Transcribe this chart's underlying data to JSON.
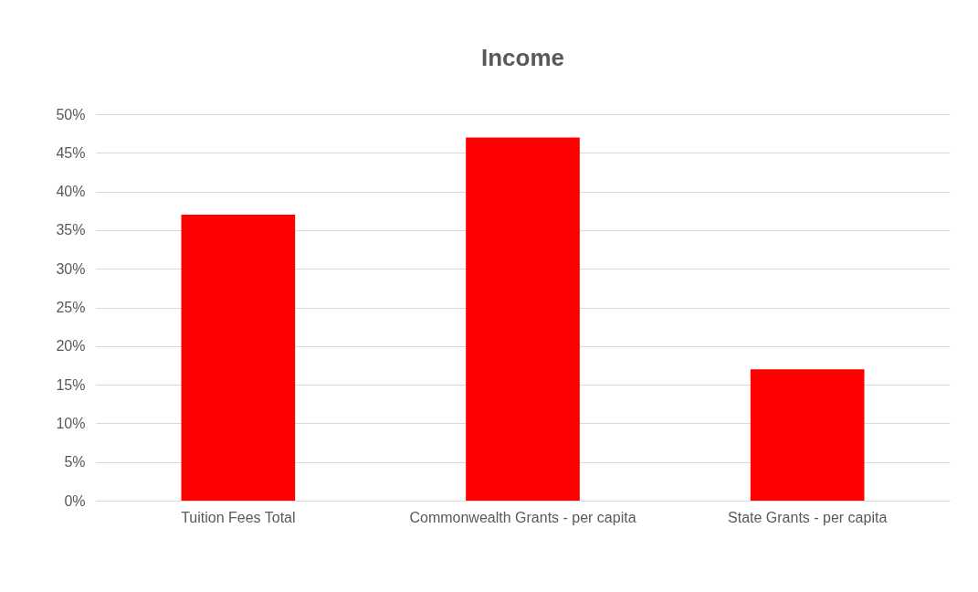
{
  "chart_data": {
    "type": "bar",
    "title": "Income",
    "categories": [
      "Tuition Fees Total",
      "Commonwealth Grants - per capita",
      "State Grants - per capita"
    ],
    "values": [
      37,
      47,
      17
    ],
    "color": "#ff0000",
    "ylim": [
      0,
      50
    ],
    "yticks": [
      {
        "value": 0,
        "label": "0%"
      },
      {
        "value": 5,
        "label": "5%"
      },
      {
        "value": 10,
        "label": "10%"
      },
      {
        "value": 15,
        "label": "15%"
      },
      {
        "value": 20,
        "label": "20%"
      },
      {
        "value": 25,
        "label": "25%"
      },
      {
        "value": 30,
        "label": "30%"
      },
      {
        "value": 35,
        "label": "35%"
      },
      {
        "value": 40,
        "label": "40%"
      },
      {
        "value": 45,
        "label": "45%"
      },
      {
        "value": 50,
        "label": "50%"
      }
    ],
    "grid": true
  }
}
